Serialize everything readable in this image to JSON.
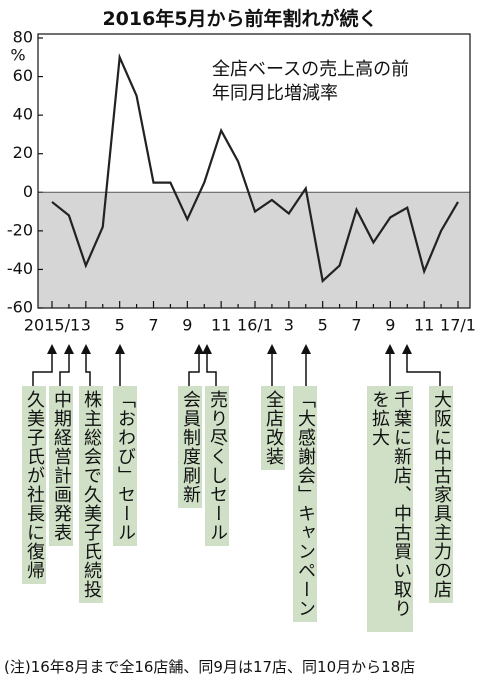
{
  "chart_data": {
    "type": "line",
    "title": "2016年5月から前年割れが続く",
    "y_unit": "%",
    "categories": [
      "2015/1",
      null,
      "3",
      null,
      "5",
      null,
      "7",
      null,
      "9",
      null,
      "11",
      null,
      "16/1",
      null,
      "3",
      null,
      "5",
      null,
      "7",
      null,
      "9",
      null,
      "11",
      null,
      "17/1"
    ],
    "series": [
      {
        "name": "全店ベースの売上高の前年同月比増減率",
        "color": "#222222",
        "values": [
          -5,
          -12,
          -38,
          -18,
          70,
          50,
          5,
          5,
          -14,
          5,
          32,
          16,
          -10,
          -4,
          -11,
          2,
          -46,
          -38,
          -9,
          -26,
          -13,
          -8,
          -41,
          -20,
          -5
        ]
      }
    ],
    "ylim": [
      -60,
      80
    ],
    "yticks": [
      80,
      60,
      40,
      20,
      0,
      -20,
      -40,
      -60
    ],
    "negative_shade": "#d6d6d6",
    "annotations": [
      "久美子氏が社長に復帰",
      "中期経営計画発表",
      "株主総会で久美子氏続投",
      "「おわび」セール",
      "会員制度刷新",
      "売り尽くしセール",
      "全店改装",
      "「大感謝会」キャンペーン",
      "千葉に新店、中古買い取りを拡大",
      "大阪に中古家具主力の店"
    ],
    "note": "(注)16年8月まで全16店舗、同9月は17店、同10月から18店"
  }
}
